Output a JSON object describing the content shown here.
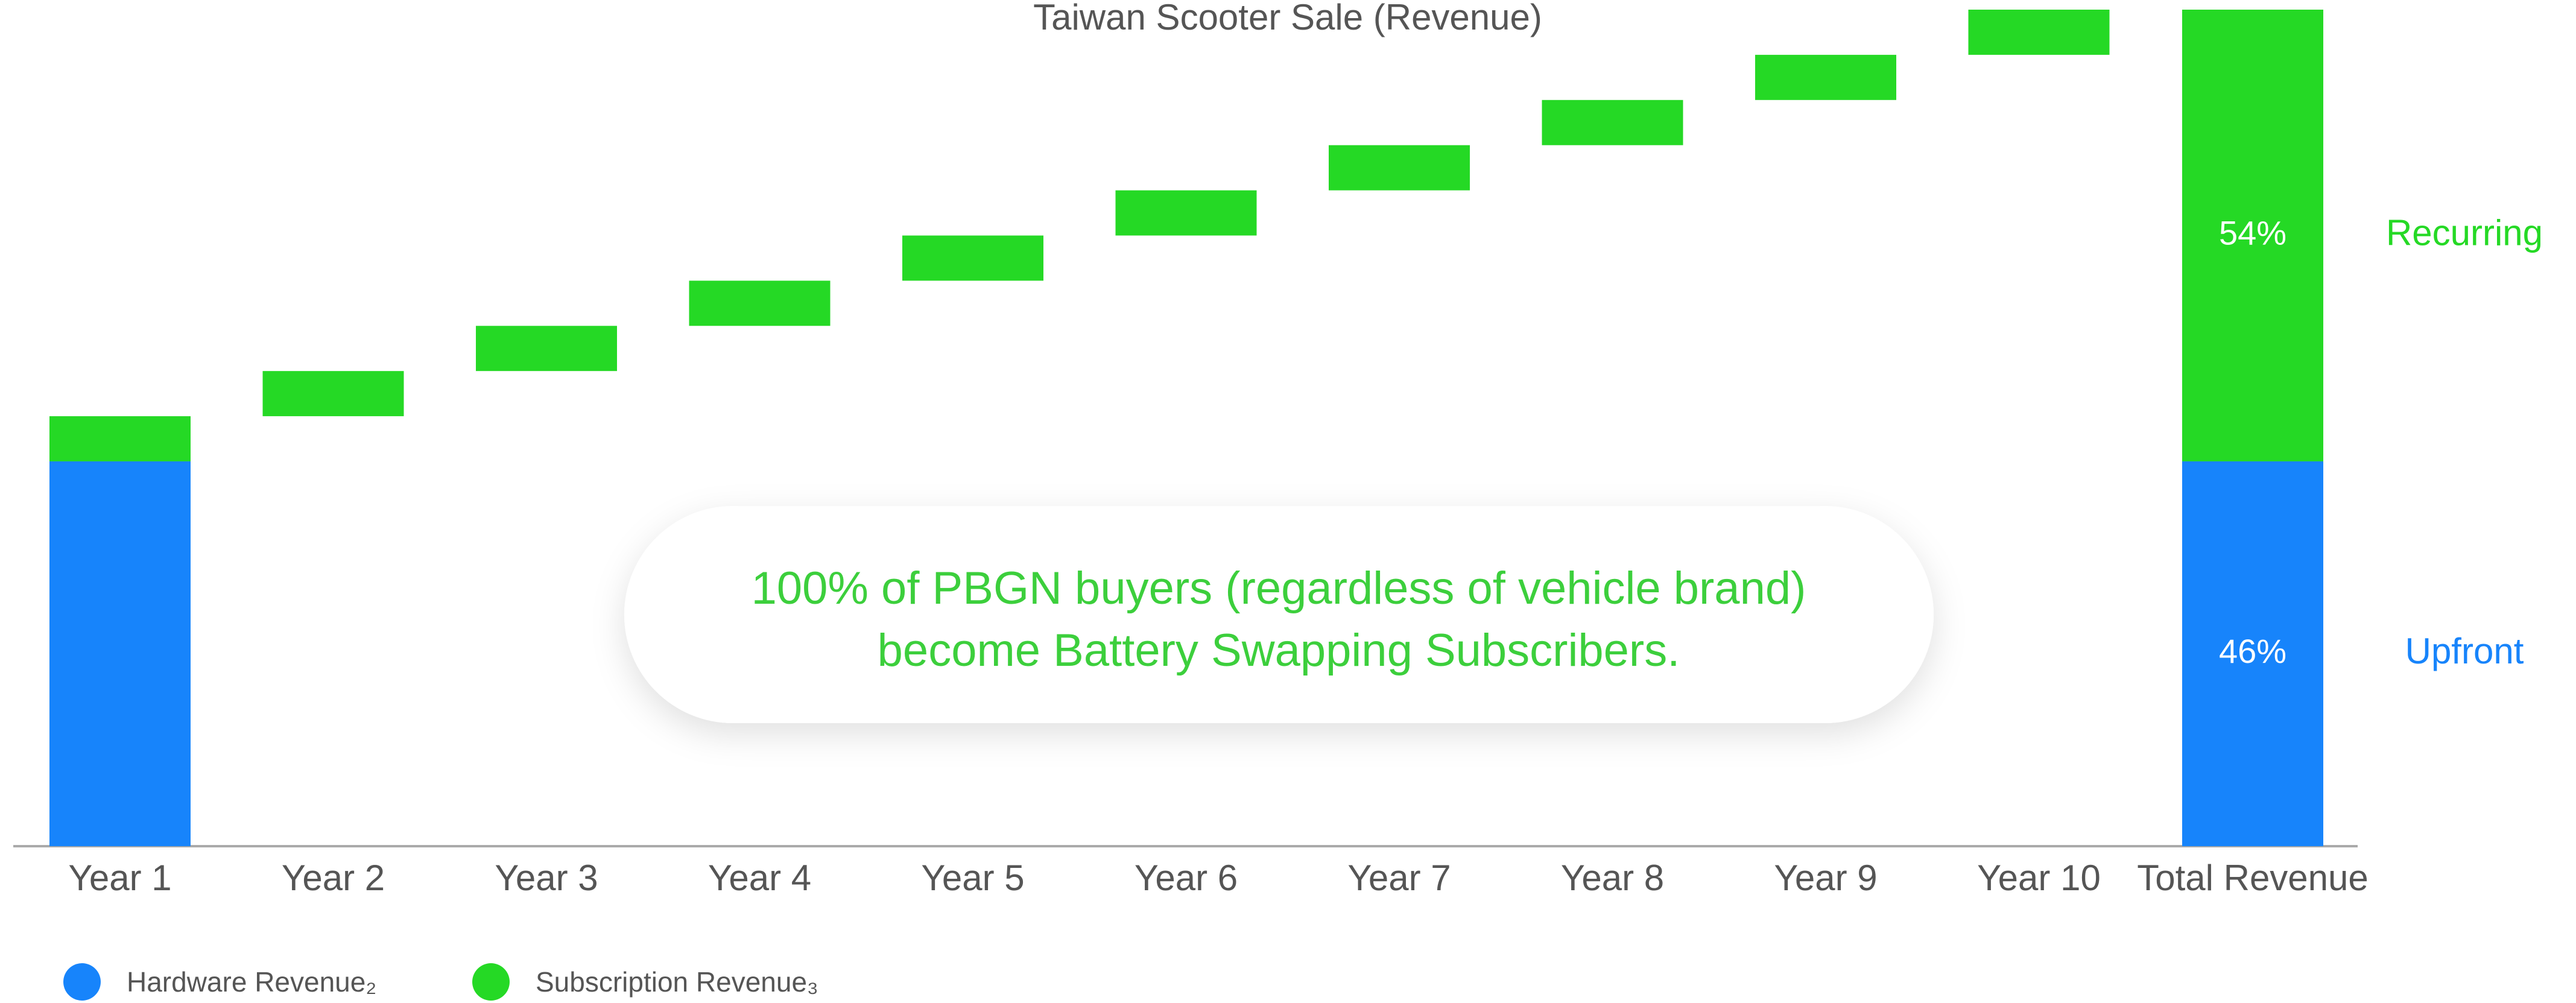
{
  "chart_data": {
    "type": "waterfall",
    "title": "Taiwan Scooter Sale (Revenue)",
    "categories": [
      "Year 1",
      "Year 2",
      "Year 3",
      "Year 4",
      "Year 5",
      "Year 6",
      "Year 7",
      "Year 8",
      "Year 9",
      "Year 10"
    ],
    "series": [
      {
        "name": "Hardware Revenue₂",
        "color": "#1784fb",
        "values": [
          46,
          null,
          null,
          null,
          null,
          null,
          null,
          null,
          null,
          null
        ]
      },
      {
        "name": "Subscription Revenue₃",
        "color": "#25d925",
        "values": [
          5.4,
          5.4,
          5.4,
          5.4,
          5.4,
          5.4,
          5.4,
          5.4,
          5.4,
          5.4
        ]
      }
    ],
    "total": {
      "category": "Total Revenue",
      "values": [
        46,
        54
      ],
      "value_labels": [
        "46%",
        "54%"
      ],
      "side_labels": [
        "Upfront",
        "Recurring"
      ]
    },
    "ylim": [
      0,
      100
    ],
    "annotation": [
      "100% of PBGN buyers (regardless of vehicle brand)",
      "become Battery Swapping Subscribers."
    ]
  }
}
